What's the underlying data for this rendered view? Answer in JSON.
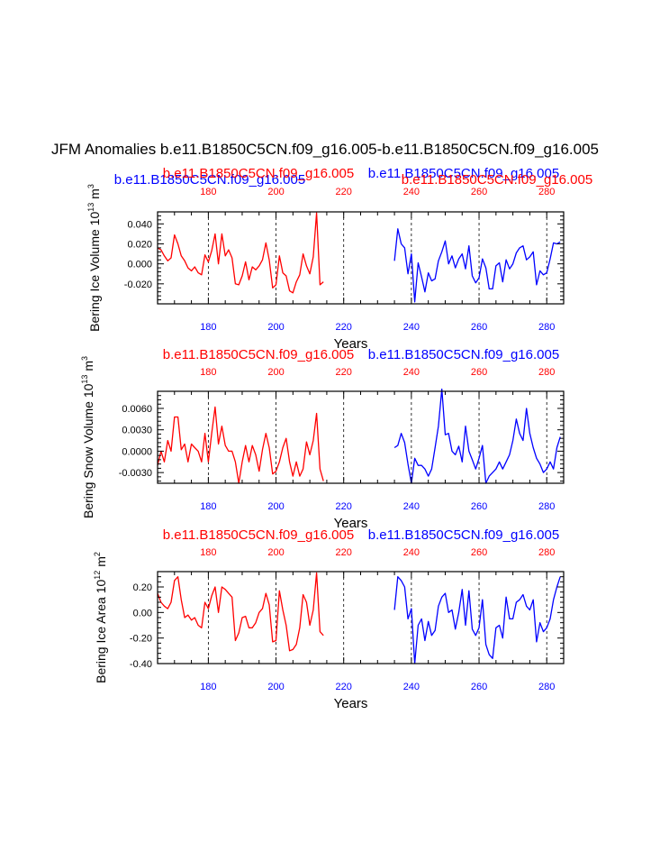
{
  "figure": {
    "title": "JFM Anomalies b.e11.B1850C5CN.f09_g16.005-b.e11.B1850C5CN.f09_g16.005",
    "colors": {
      "red": "#ff0000",
      "blue": "#0000ff",
      "black": "#000000"
    }
  },
  "chart_data": [
    {
      "type": "line",
      "ylabel": "Bering Ice Volume 10^13 m^3",
      "ylabel_main": "Bering Ice Volume 10",
      "ylabel_exp": "13",
      "ylabel_unit": " m",
      "ylabel_unit_exp": "3",
      "xlabel": "Years",
      "xlim": [
        165,
        285
      ],
      "ylim": [
        -0.04,
        0.052
      ],
      "yticks": [
        -0.02,
        0.0,
        0.02,
        0.04
      ],
      "ytick_labels": [
        "-0.020",
        "0.000",
        "0.020",
        "0.040"
      ],
      "xticks": [
        180,
        200,
        220,
        240,
        260,
        280
      ],
      "xtick_labels": [
        "180",
        "200",
        "220",
        "240",
        "260",
        "280"
      ],
      "dashed_lines": [
        180,
        200,
        220,
        240,
        260,
        280
      ],
      "top_titles": [
        {
          "text": "b.e11.B1850C5CN.f09_g16.005",
          "color": "#0000ff"
        },
        {
          "text": "b.e11.B1850C5CN.f09_g16.005",
          "color": "#ff0000"
        },
        {
          "text": "b.e11.B1850C5CN.f09_g16.005",
          "color": "#0000ff"
        },
        {
          "text": "b.e11.B1850C5CN.f09_g16.005",
          "color": "#ff0000"
        }
      ],
      "series": [
        {
          "name": "b.e11.B1850C5CN.f09_g16.005",
          "color": "#ff0000",
          "x": [
            165,
            166,
            167,
            168,
            169,
            170,
            171,
            172,
            173,
            174,
            175,
            176,
            177,
            178,
            179,
            180,
            181,
            182,
            183,
            184,
            185,
            186,
            187,
            188,
            189,
            190,
            191,
            192,
            193,
            194,
            195,
            196,
            197,
            198,
            199,
            200,
            201,
            202,
            203,
            204,
            205,
            206,
            207,
            208,
            209,
            210,
            211,
            212,
            213,
            214
          ],
          "y": [
            0.016,
            0.014,
            0.008,
            0.003,
            0.006,
            0.029,
            0.02,
            0.008,
            0.003,
            -0.004,
            -0.007,
            -0.003,
            -0.009,
            -0.011,
            0.009,
            0.002,
            0.013,
            0.03,
            0.0,
            0.03,
            0.008,
            0.014,
            0.006,
            -0.02,
            -0.021,
            -0.012,
            0.002,
            -0.016,
            -0.003,
            -0.006,
            -0.002,
            0.004,
            0.021,
            0.004,
            -0.024,
            -0.021,
            0.008,
            -0.009,
            -0.012,
            -0.027,
            -0.029,
            -0.018,
            -0.011,
            0.01,
            -0.002,
            -0.01,
            0.007,
            0.051,
            -0.021,
            -0.018
          ]
        },
        {
          "name": "b.e11.B1850C5CN.f09_g16.005",
          "color": "#0000ff",
          "x": [
            235,
            236,
            237,
            238,
            239,
            240,
            241,
            242,
            243,
            244,
            245,
            246,
            247,
            248,
            249,
            250,
            251,
            252,
            253,
            254,
            255,
            256,
            257,
            258,
            259,
            260,
            261,
            262,
            263,
            264,
            265,
            266,
            267,
            268,
            269,
            270,
            271,
            272,
            273,
            274,
            275,
            276,
            277,
            278,
            279,
            280,
            281,
            282,
            283,
            284
          ],
          "y": [
            0.003,
            0.035,
            0.02,
            0.016,
            -0.01,
            0.01,
            -0.038,
            0.001,
            -0.013,
            -0.028,
            -0.009,
            -0.017,
            -0.015,
            0.003,
            0.012,
            0.023,
            0.0,
            0.008,
            -0.004,
            0.005,
            0.01,
            -0.005,
            0.018,
            -0.012,
            -0.019,
            -0.014,
            0.005,
            -0.004,
            -0.025,
            -0.025,
            -0.002,
            0.001,
            -0.018,
            0.004,
            -0.005,
            0.0,
            0.011,
            0.016,
            0.018,
            0.004,
            0.007,
            0.012,
            -0.021,
            -0.007,
            -0.011,
            -0.009,
            0.005,
            0.021,
            0.02,
            0.022
          ]
        }
      ]
    },
    {
      "type": "line",
      "ylabel": "Bering Snow Volume 10^13 m^3",
      "ylabel_main": "Bering Snow Volume 10",
      "ylabel_exp": "13",
      "ylabel_unit": " m",
      "ylabel_unit_exp": "3",
      "xlabel": "Years",
      "xlim": [
        165,
        285
      ],
      "ylim": [
        -0.0045,
        0.0084
      ],
      "yticks": [
        -0.003,
        0.0,
        0.003,
        0.006
      ],
      "ytick_labels": [
        "-0.0030",
        "0.0000",
        "0.0030",
        "0.0060"
      ],
      "xticks": [
        180,
        200,
        220,
        240,
        260,
        280
      ],
      "xtick_labels": [
        "180",
        "200",
        "220",
        "240",
        "260",
        "280"
      ],
      "dashed_lines": [
        180,
        200,
        220,
        240,
        260,
        280
      ],
      "top_titles": [
        {
          "text": "b.e11.B1850C5CN.f09_g16.005",
          "color": "#ff0000"
        },
        {
          "text": "b.e11.B1850C5CN.f09_g16.005",
          "color": "#0000ff"
        }
      ],
      "series": [
        {
          "name": "b.e11.B1850C5CN.f09_g16.005",
          "color": "#ff0000",
          "x": [
            165,
            166,
            167,
            168,
            169,
            170,
            171,
            172,
            173,
            174,
            175,
            176,
            177,
            178,
            179,
            180,
            181,
            182,
            183,
            184,
            185,
            186,
            187,
            188,
            189,
            190,
            191,
            192,
            193,
            194,
            195,
            196,
            197,
            198,
            199,
            200,
            201,
            202,
            203,
            204,
            205,
            206,
            207,
            208,
            209,
            210,
            211,
            212,
            213,
            214
          ],
          "y": [
            -0.002,
            0.0,
            -0.0015,
            0.0015,
            0.0,
            0.0048,
            0.0048,
            0.0002,
            0.001,
            -0.0015,
            0.001,
            0.0005,
            0.0,
            -0.0015,
            0.0025,
            -0.0015,
            0.0025,
            0.0062,
            0.001,
            0.0035,
            0.0008,
            0.0,
            0.0,
            -0.0015,
            -0.0045,
            -0.0015,
            0.0008,
            -0.0015,
            0.0008,
            -0.0005,
            -0.0028,
            0.0002,
            0.0025,
            0.0005,
            -0.0032,
            -0.0028,
            -0.0015,
            0.0005,
            0.0018,
            -0.0015,
            -0.0035,
            -0.0015,
            -0.0035,
            -0.0025,
            0.0013,
            -0.0005,
            0.0015,
            0.0053,
            -0.0025,
            -0.0042
          ]
        },
        {
          "name": "b.e11.B1850C5CN.f09_g16.005",
          "color": "#0000ff",
          "x": [
            235,
            236,
            237,
            238,
            239,
            240,
            241,
            242,
            243,
            244,
            245,
            246,
            247,
            248,
            249,
            250,
            251,
            252,
            253,
            254,
            255,
            256,
            257,
            258,
            259,
            260,
            261,
            262,
            263,
            264,
            265,
            266,
            267,
            268,
            269,
            270,
            271,
            272,
            273,
            274,
            275,
            276,
            277,
            278,
            279,
            280,
            281,
            282,
            283,
            284
          ],
          "y": [
            0.0005,
            0.0008,
            0.0025,
            0.0012,
            -0.0018,
            -0.0045,
            -0.001,
            -0.002,
            -0.002,
            -0.0025,
            -0.0035,
            -0.0025,
            0.0005,
            0.0035,
            0.0087,
            0.0023,
            0.0025,
            0.0,
            -0.0005,
            0.0007,
            -0.0015,
            0.0035,
            0.0,
            -0.0012,
            -0.0025,
            -0.001,
            0.0008,
            -0.0045,
            -0.0035,
            -0.003,
            -0.0025,
            -0.0015,
            -0.0025,
            -0.0015,
            -0.0005,
            0.0015,
            0.0045,
            0.0025,
            0.0015,
            0.006,
            0.0025,
            0.0005,
            -0.001,
            -0.0018,
            -0.003,
            -0.0025,
            -0.0015,
            -0.0025,
            0.0005,
            0.002
          ]
        }
      ]
    },
    {
      "type": "line",
      "ylabel": "Bering Ice Area 10^12 m^2",
      "ylabel_main": "Bering Ice Area 10",
      "ylabel_exp": "12",
      "ylabel_unit": " m",
      "ylabel_unit_exp": "2",
      "xlabel": "Years",
      "xlim": [
        165,
        285
      ],
      "ylim": [
        -0.4,
        0.32
      ],
      "yticks": [
        -0.4,
        -0.2,
        0.0,
        0.2
      ],
      "ytick_labels": [
        "-0.40",
        "-0.20",
        "0.00",
        "0.20"
      ],
      "xticks": [
        180,
        200,
        220,
        240,
        260,
        280
      ],
      "xtick_labels": [
        "180",
        "200",
        "220",
        "240",
        "260",
        "280"
      ],
      "dashed_lines": [
        180,
        200,
        220,
        240,
        260,
        280
      ],
      "top_titles": [
        {
          "text": "b.e11.B1850C5CN.f09_g16.005",
          "color": "#ff0000"
        },
        {
          "text": "b.e11.B1850C5CN.f09_g16.005",
          "color": "#0000ff"
        }
      ],
      "series": [
        {
          "name": "b.e11.B1850C5CN.f09_g16.005",
          "color": "#ff0000",
          "x": [
            165,
            166,
            167,
            168,
            169,
            170,
            171,
            172,
            173,
            174,
            175,
            176,
            177,
            178,
            179,
            180,
            181,
            182,
            183,
            184,
            185,
            186,
            187,
            188,
            189,
            190,
            191,
            192,
            193,
            194,
            195,
            196,
            197,
            198,
            199,
            200,
            201,
            202,
            203,
            204,
            205,
            206,
            207,
            208,
            209,
            210,
            211,
            212,
            213,
            214
          ],
          "y": [
            0.15,
            0.08,
            0.05,
            0.03,
            0.08,
            0.25,
            0.28,
            0.1,
            -0.04,
            -0.02,
            -0.06,
            -0.04,
            -0.1,
            -0.12,
            0.08,
            0.03,
            0.13,
            0.2,
            0.0,
            0.2,
            0.18,
            0.15,
            0.12,
            -0.22,
            -0.16,
            -0.04,
            -0.03,
            -0.12,
            -0.12,
            -0.08,
            0.0,
            0.03,
            0.15,
            0.06,
            -0.23,
            -0.22,
            0.17,
            0.02,
            -0.1,
            -0.3,
            -0.29,
            -0.25,
            -0.12,
            0.14,
            0.08,
            -0.1,
            0.02,
            0.31,
            -0.15,
            -0.18
          ]
        },
        {
          "name": "b.e11.B1850C5CN.f09_g16.005",
          "color": "#0000ff",
          "x": [
            235,
            236,
            237,
            238,
            239,
            240,
            241,
            242,
            243,
            244,
            245,
            246,
            247,
            248,
            249,
            250,
            251,
            252,
            253,
            254,
            255,
            256,
            257,
            258,
            259,
            260,
            261,
            262,
            263,
            264,
            265,
            266,
            267,
            268,
            269,
            270,
            271,
            272,
            273,
            274,
            275,
            276,
            277,
            278,
            279,
            280,
            281,
            282,
            283,
            284
          ],
          "y": [
            0.02,
            0.28,
            0.25,
            0.2,
            -0.05,
            0.03,
            -0.4,
            -0.1,
            -0.05,
            -0.22,
            -0.07,
            -0.18,
            -0.14,
            0.05,
            0.12,
            0.15,
            0.0,
            0.02,
            -0.13,
            0.0,
            0.18,
            -0.1,
            0.17,
            -0.13,
            -0.18,
            -0.12,
            0.1,
            -0.25,
            -0.33,
            -0.36,
            -0.12,
            -0.1,
            -0.2,
            0.12,
            -0.05,
            -0.05,
            0.08,
            0.1,
            0.14,
            0.05,
            0.02,
            0.1,
            -0.23,
            -0.08,
            -0.15,
            -0.12,
            -0.05,
            0.1,
            0.2,
            0.28
          ]
        }
      ]
    }
  ]
}
